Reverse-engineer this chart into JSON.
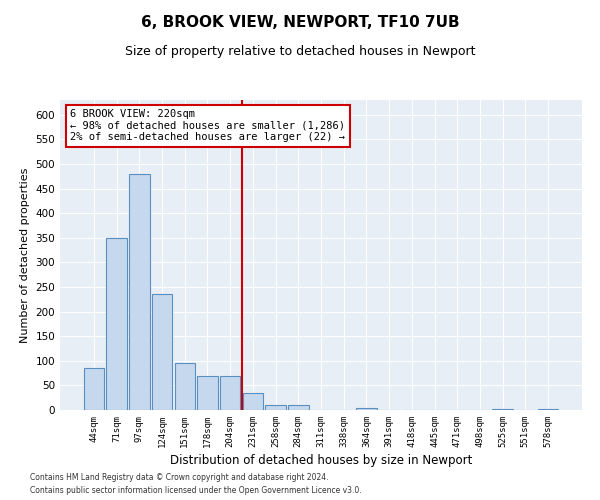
{
  "title1": "6, BROOK VIEW, NEWPORT, TF10 7UB",
  "title2": "Size of property relative to detached houses in Newport",
  "xlabel": "Distribution of detached houses by size in Newport",
  "ylabel": "Number of detached properties",
  "categories": [
    "44sqm",
    "71sqm",
    "97sqm",
    "124sqm",
    "151sqm",
    "178sqm",
    "204sqm",
    "231sqm",
    "258sqm",
    "284sqm",
    "311sqm",
    "338sqm",
    "364sqm",
    "391sqm",
    "418sqm",
    "445sqm",
    "471sqm",
    "498sqm",
    "525sqm",
    "551sqm",
    "578sqm"
  ],
  "values": [
    85,
    350,
    480,
    235,
    95,
    70,
    70,
    35,
    10,
    10,
    0,
    0,
    5,
    0,
    0,
    0,
    0,
    0,
    3,
    0,
    2
  ],
  "bar_color": "#c5d8ee",
  "bar_edge_color": "#5a8fc2",
  "vline_index": 7,
  "vline_color": "#cc0000",
  "annotation_line1": "6 BROOK VIEW: 220sqm",
  "annotation_line2": "← 98% of detached houses are smaller (1,286)",
  "annotation_line3": "2% of semi-detached houses are larger (22) →",
  "annotation_box_color": "white",
  "annotation_box_edge": "#cc0000",
  "footer1": "Contains HM Land Registry data © Crown copyright and database right 2024.",
  "footer2": "Contains public sector information licensed under the Open Government Licence v3.0.",
  "ylim": [
    0,
    630
  ],
  "yticks": [
    0,
    50,
    100,
    150,
    200,
    250,
    300,
    350,
    400,
    450,
    500,
    550,
    600
  ],
  "plot_background": "#e8eef5",
  "grid_color": "#ffffff",
  "title1_fontsize": 11,
  "title2_fontsize": 9
}
